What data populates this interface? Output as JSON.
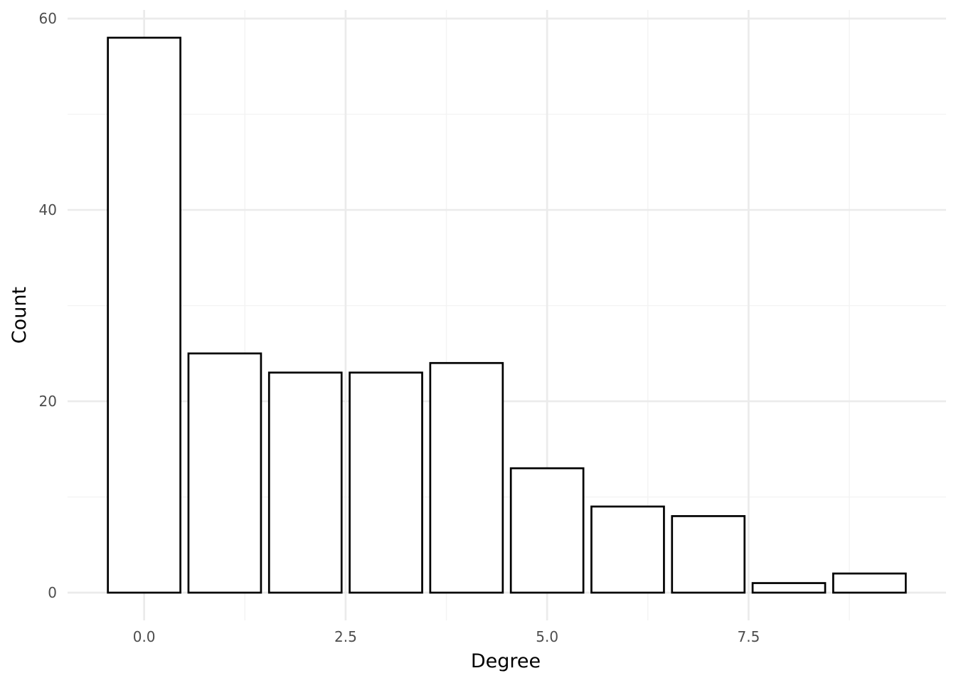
{
  "chart_data": {
    "type": "bar",
    "title": "",
    "xlabel": "Degree",
    "ylabel": "Count",
    "x": [
      0,
      1,
      2,
      3,
      4,
      5,
      6,
      7,
      8,
      9
    ],
    "values": [
      58,
      25,
      23,
      23,
      24,
      13,
      9,
      8,
      1,
      2
    ],
    "bar_width": 0.9,
    "xlim": [
      -0.95,
      9.95
    ],
    "ylim": [
      -2.9,
      60.9
    ],
    "x_ticks": [
      0,
      2.5,
      5,
      7.5
    ],
    "x_tick_labels": [
      "0.0",
      "2.5",
      "5.0",
      "7.5"
    ],
    "y_ticks": [
      0,
      20,
      40,
      60
    ],
    "y_tick_labels": [
      "0",
      "20",
      "40",
      "60"
    ],
    "grid": true,
    "legend": "none",
    "colors": {
      "bar_fill": "#ffffff",
      "bar_stroke": "#000000",
      "grid": "#ebebeb",
      "tick_text": "#4d4d4d"
    }
  }
}
